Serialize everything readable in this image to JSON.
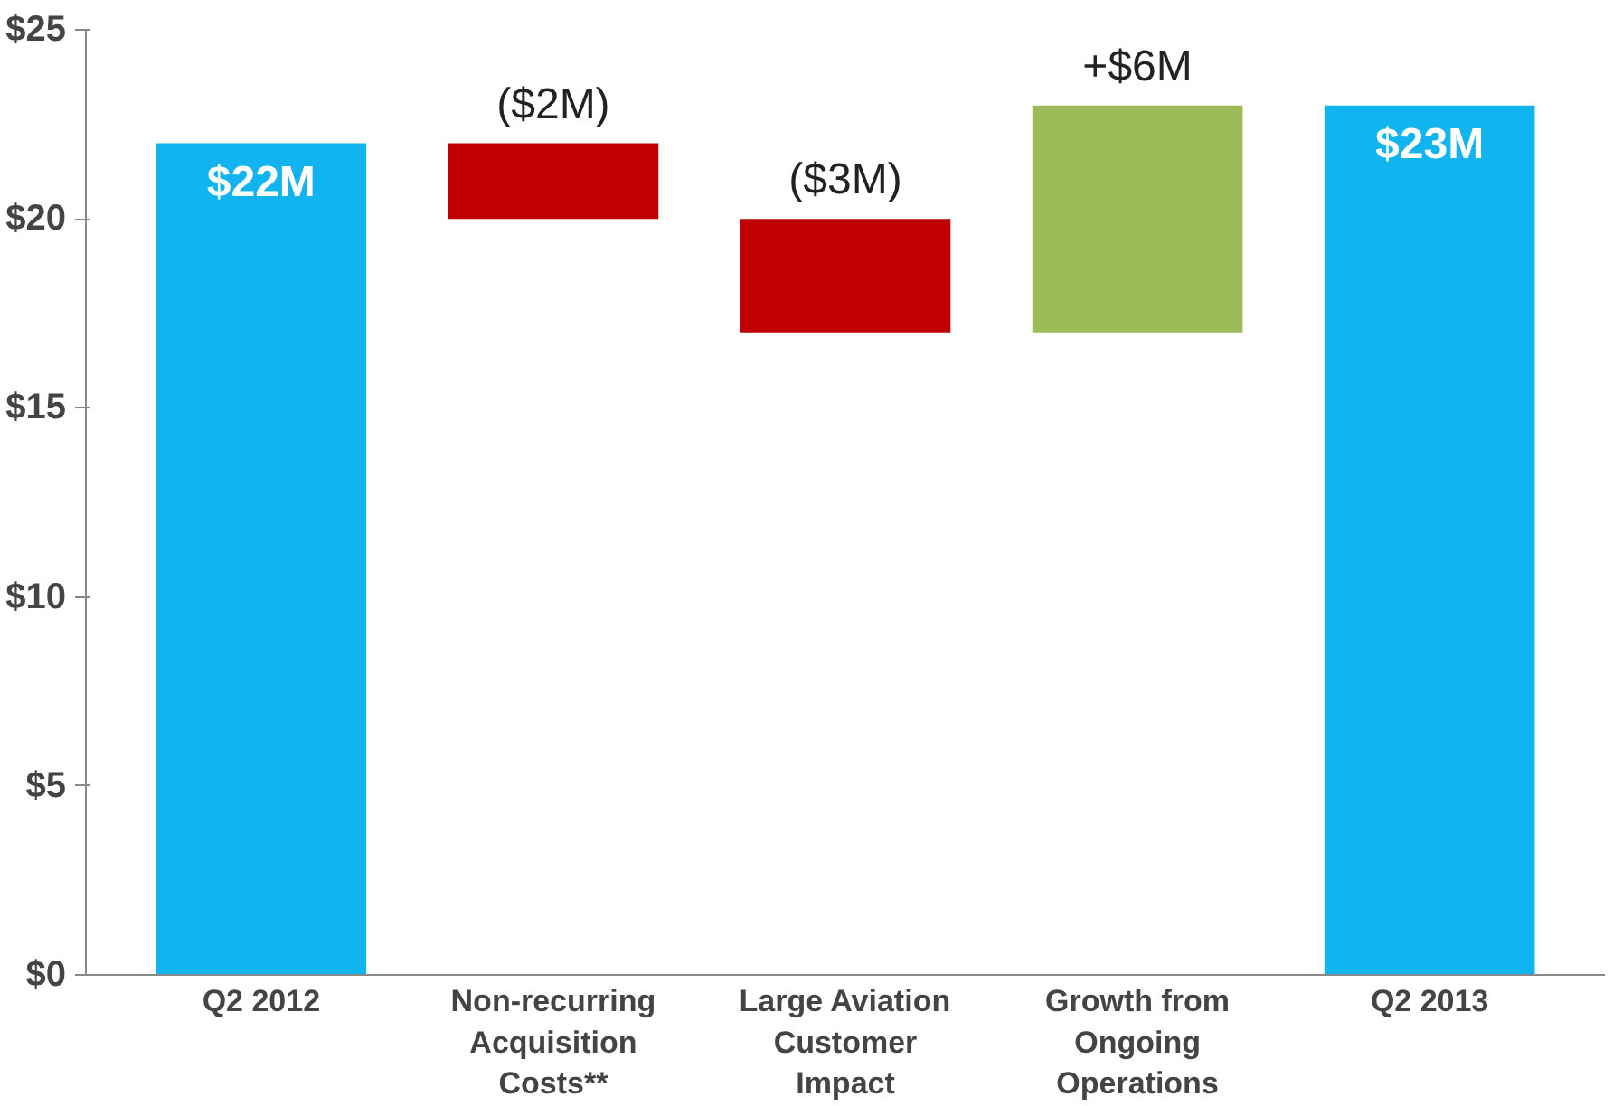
{
  "chart_data": {
    "type": "bar",
    "categories": [
      "Q2 2012",
      "Non-recurring Acquisition Costs**",
      "Large Aviation Customer Impact",
      "Growth from Ongoing Operations",
      "Q2 2013"
    ],
    "values": [
      22,
      -2,
      -3,
      6,
      23
    ],
    "base": [
      0,
      22,
      20,
      17,
      0
    ],
    "colors": [
      "#12b4ef",
      "#c00000",
      "#c00000",
      "#9bbb59",
      "#12b4ef"
    ],
    "value_labels": [
      "$22M",
      "($2M)",
      "($3M)",
      "+$6M",
      "$23M"
    ],
    "ylim": [
      0,
      25
    ],
    "yticks": [
      {
        "value": 0,
        "label": "$0"
      },
      {
        "value": 5,
        "label": "$5"
      },
      {
        "value": 10,
        "label": "$10"
      },
      {
        "value": 15,
        "label": "$15"
      },
      {
        "value": 20,
        "label": "$20"
      },
      {
        "value": 25,
        "label": "$25"
      }
    ],
    "grid": false
  }
}
